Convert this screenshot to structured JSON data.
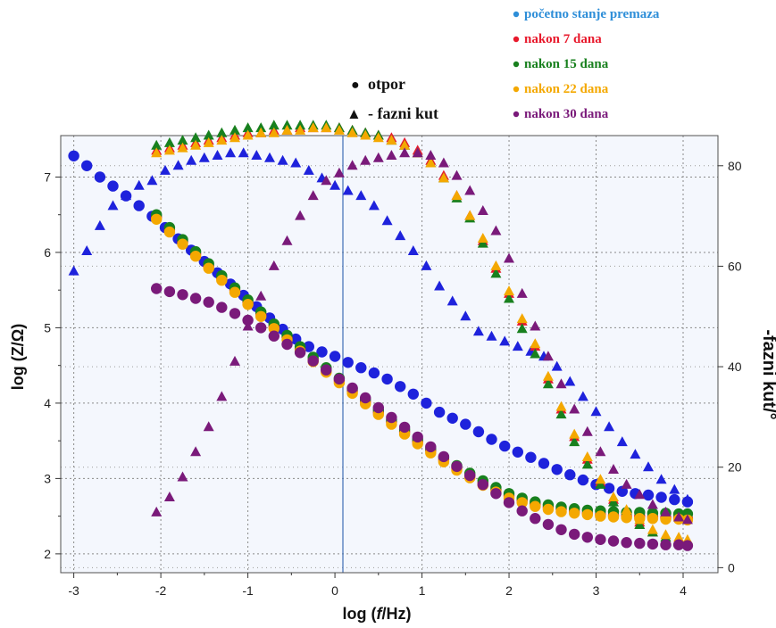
{
  "chart_data": {
    "type": "scatter",
    "xlabel_parts": [
      "log (",
      "f",
      "/Hz)"
    ],
    "ylabel": "log (Z/Ω)",
    "y2label": "-fazni kut/°",
    "xlim": [
      -3.15,
      4.4
    ],
    "ylim": [
      1.75,
      7.55
    ],
    "y2lim": [
      -1,
      86
    ],
    "xticks": [
      "-3",
      "-2",
      "-1",
      "0",
      "1",
      "2",
      "3",
      "4"
    ],
    "yticks": [
      "2",
      "3",
      "4",
      "5",
      "6",
      "7"
    ],
    "y2ticks": [
      "0",
      "20",
      "40",
      "60",
      "80"
    ],
    "marker_legend": [
      {
        "glyph": "●",
        "label": "otpor"
      },
      {
        "glyph": "▲",
        "label": "- fazni kut"
      }
    ],
    "series": [
      {
        "name": "početno stanje premaza",
        "color": "#1e22dc",
        "legend_color": "#2e8ed8",
        "imp_x": [
          -3.0,
          -2.85,
          -2.7,
          -2.55,
          -2.4,
          -2.25,
          -2.1,
          -1.95,
          -1.8,
          -1.65,
          -1.5,
          -1.35,
          -1.2,
          -1.05,
          -0.9,
          -0.75,
          -0.6,
          -0.45,
          -0.3,
          -0.15,
          0.0,
          0.15,
          0.3,
          0.45,
          0.6,
          0.75,
          0.9,
          1.05,
          1.2,
          1.35,
          1.5,
          1.65,
          1.8,
          1.95,
          2.1,
          2.25,
          2.4,
          2.55,
          2.7,
          2.85,
          3.0,
          3.15,
          3.3,
          3.45,
          3.6,
          3.75,
          3.9,
          4.05
        ],
        "imp_y": [
          7.28,
          7.15,
          7.0,
          6.88,
          6.75,
          6.62,
          6.48,
          6.33,
          6.18,
          6.03,
          5.88,
          5.73,
          5.58,
          5.43,
          5.28,
          5.13,
          4.98,
          4.85,
          4.75,
          4.68,
          4.62,
          4.54,
          4.47,
          4.4,
          4.32,
          4.22,
          4.12,
          4.0,
          3.88,
          3.8,
          3.72,
          3.62,
          3.52,
          3.43,
          3.35,
          3.28,
          3.2,
          3.12,
          3.05,
          2.98,
          2.92,
          2.87,
          2.83,
          2.8,
          2.78,
          2.75,
          2.72,
          2.69
        ],
        "phase_x": [
          -3.0,
          -2.85,
          -2.7,
          -2.55,
          -2.4,
          -2.25,
          -2.1,
          -1.95,
          -1.8,
          -1.65,
          -1.5,
          -1.35,
          -1.2,
          -1.05,
          -0.9,
          -0.75,
          -0.6,
          -0.45,
          -0.3,
          -0.15,
          0.0,
          0.15,
          0.3,
          0.45,
          0.6,
          0.75,
          0.9,
          1.05,
          1.2,
          1.35,
          1.5,
          1.65,
          1.8,
          1.95,
          2.1,
          2.25,
          2.4,
          2.55,
          2.7,
          2.85,
          3.0,
          3.15,
          3.3,
          3.45,
          3.6,
          3.75,
          3.9,
          4.05
        ],
        "phase_y": [
          59,
          63,
          68,
          72,
          74,
          76,
          77,
          79,
          80,
          81,
          81.5,
          82,
          82.5,
          82.5,
          82,
          81.5,
          81,
          80.5,
          79,
          77.5,
          76,
          75,
          74,
          72,
          69,
          66,
          63,
          60,
          56,
          53,
          50,
          47,
          46,
          45,
          44,
          43,
          42,
          40,
          37,
          34,
          31,
          28,
          25,
          22.5,
          20,
          17.5,
          15.5,
          13.5
        ]
      },
      {
        "name": "nakon 7 dana",
        "color": "#e8192c",
        "legend_color": "#e8192c",
        "imp_x": [
          -2.05,
          -1.9,
          -1.75,
          -1.6,
          -1.45,
          -1.3,
          -1.15,
          -1.0,
          -0.85,
          -0.7,
          -0.55,
          -0.4,
          -0.25,
          -0.1,
          0.05,
          0.2,
          0.35,
          0.5,
          0.65,
          0.8,
          0.95,
          1.1,
          1.25,
          1.4,
          1.55,
          1.7,
          1.85,
          2.0,
          2.15,
          2.3,
          2.45,
          2.6,
          2.75,
          2.9,
          3.05,
          3.2,
          3.35,
          3.5,
          3.65,
          3.8,
          3.95,
          4.05
        ],
        "imp_y": [
          6.47,
          6.3,
          6.14,
          5.98,
          5.82,
          5.66,
          5.5,
          5.34,
          5.18,
          5.02,
          4.87,
          4.72,
          4.58,
          4.44,
          4.3,
          4.16,
          4.02,
          3.88,
          3.75,
          3.62,
          3.49,
          3.37,
          3.25,
          3.14,
          3.04,
          2.94,
          2.85,
          2.77,
          2.71,
          2.66,
          2.62,
          2.59,
          2.56,
          2.54,
          2.52,
          2.51,
          2.5,
          2.5,
          2.49,
          2.48,
          2.48,
          2.47
        ],
        "phase_x": [
          -2.05,
          -1.9,
          -1.75,
          -1.6,
          -1.45,
          -1.3,
          -1.15,
          -1.0,
          -0.85,
          -0.7,
          -0.55,
          -0.4,
          -0.25,
          -0.1,
          0.05,
          0.2,
          0.35,
          0.5,
          0.65,
          0.8,
          0.95,
          1.1,
          1.25,
          1.4,
          1.55,
          1.7,
          1.85,
          2.0,
          2.15,
          2.3,
          2.45,
          2.6,
          2.75,
          2.9,
          3.05,
          3.2,
          3.35,
          3.5,
          3.65,
          3.8,
          3.95,
          4.05
        ],
        "phase_y": [
          83,
          83.5,
          84,
          84.5,
          85,
          85.5,
          86,
          86.5,
          86.5,
          87,
          87,
          87.5,
          87.5,
          87.5,
          87.5,
          87,
          86.5,
          86,
          85.5,
          84.5,
          83,
          81,
          78,
          74,
          70,
          65,
          59.5,
          54.5,
          49,
          44,
          37.5,
          31.5,
          26,
          21.5,
          17,
          13.5,
          11,
          9,
          7,
          6,
          5.5,
          5
        ]
      },
      {
        "name": "nakon 15 dana",
        "color": "#18801e",
        "legend_color": "#18801e",
        "imp_x": [
          -2.05,
          -1.9,
          -1.75,
          -1.6,
          -1.45,
          -1.3,
          -1.15,
          -1.0,
          -0.85,
          -0.7,
          -0.55,
          -0.4,
          -0.25,
          -0.1,
          0.05,
          0.2,
          0.35,
          0.5,
          0.65,
          0.8,
          0.95,
          1.1,
          1.25,
          1.4,
          1.55,
          1.7,
          1.85,
          2.0,
          2.15,
          2.3,
          2.45,
          2.6,
          2.75,
          2.9,
          3.05,
          3.2,
          3.35,
          3.5,
          3.65,
          3.8,
          3.95,
          4.05
        ],
        "imp_y": [
          6.5,
          6.33,
          6.17,
          6.01,
          5.85,
          5.69,
          5.53,
          5.37,
          5.21,
          5.05,
          4.9,
          4.75,
          4.61,
          4.47,
          4.33,
          4.19,
          4.05,
          3.91,
          3.78,
          3.65,
          3.52,
          3.4,
          3.28,
          3.17,
          3.07,
          2.97,
          2.88,
          2.8,
          2.74,
          2.69,
          2.65,
          2.62,
          2.6,
          2.58,
          2.57,
          2.56,
          2.55,
          2.55,
          2.54,
          2.54,
          2.53,
          2.53
        ],
        "phase_y": [
          84,
          84.5,
          85,
          85.5,
          86,
          86.5,
          87,
          87.5,
          87.5,
          88,
          88,
          88,
          88,
          88,
          87.5,
          87,
          86.5,
          86,
          85,
          84,
          82.5,
          80.5,
          77.5,
          73.5,
          69.5,
          64.5,
          58.5,
          53.5,
          47.5,
          42.5,
          36.5,
          30.5,
          25,
          20.5,
          16.5,
          13,
          10.5,
          8.5,
          7,
          6,
          5.5,
          5
        ]
      },
      {
        "name": "nakon 22 dana",
        "color": "#f4a800",
        "legend_color": "#f4a800",
        "imp_x": [
          -2.05,
          -1.9,
          -1.75,
          -1.6,
          -1.45,
          -1.3,
          -1.15,
          -1.0,
          -0.85,
          -0.7,
          -0.55,
          -0.4,
          -0.25,
          -0.1,
          0.05,
          0.2,
          0.35,
          0.5,
          0.65,
          0.8,
          0.95,
          1.1,
          1.25,
          1.4,
          1.55,
          1.7,
          1.85,
          2.0,
          2.15,
          2.3,
          2.45,
          2.6,
          2.75,
          2.9,
          3.05,
          3.2,
          3.35,
          3.5,
          3.65,
          3.8,
          3.95,
          4.05
        ],
        "imp_y": [
          6.44,
          6.27,
          6.11,
          5.95,
          5.79,
          5.63,
          5.47,
          5.31,
          5.15,
          4.99,
          4.84,
          4.69,
          4.55,
          4.41,
          4.27,
          4.13,
          3.99,
          3.85,
          3.72,
          3.59,
          3.46,
          3.34,
          3.22,
          3.11,
          3.01,
          2.91,
          2.82,
          2.74,
          2.68,
          2.63,
          2.59,
          2.56,
          2.54,
          2.52,
          2.5,
          2.49,
          2.48,
          2.47,
          2.47,
          2.46,
          2.46,
          2.45
        ],
        "phase_y": [
          82.5,
          83,
          83.5,
          84,
          84.5,
          85,
          85.5,
          86,
          86.5,
          86.5,
          87,
          87,
          87.5,
          87.5,
          87,
          86.5,
          86,
          85.5,
          85,
          84,
          82.5,
          80.5,
          77.5,
          74,
          70,
          65.5,
          60,
          55,
          49.5,
          44.5,
          38,
          32,
          26.5,
          22,
          17.5,
          14,
          11.5,
          9.5,
          7.5,
          6.5,
          6,
          5.5
        ]
      },
      {
        "name": "nakon 30 dana",
        "color": "#7a1a7a",
        "legend_color": "#7a1a7a",
        "imp_x": [
          -2.05,
          -1.9,
          -1.75,
          -1.6,
          -1.45,
          -1.3,
          -1.15,
          -1.0,
          -0.85,
          -0.7,
          -0.55,
          -0.4,
          -0.25,
          -0.1,
          0.05,
          0.2,
          0.35,
          0.5,
          0.65,
          0.8,
          0.95,
          1.1,
          1.25,
          1.4,
          1.55,
          1.7,
          1.85,
          2.0,
          2.15,
          2.3,
          2.45,
          2.6,
          2.75,
          2.9,
          3.05,
          3.2,
          3.35,
          3.5,
          3.65,
          3.8,
          3.95,
          4.05
        ],
        "imp_y": [
          5.52,
          5.48,
          5.44,
          5.39,
          5.34,
          5.27,
          5.19,
          5.1,
          5.0,
          4.89,
          4.78,
          4.67,
          4.56,
          4.44,
          4.32,
          4.2,
          4.07,
          3.94,
          3.81,
          3.68,
          3.55,
          3.42,
          3.29,
          3.16,
          3.04,
          2.92,
          2.8,
          2.68,
          2.57,
          2.47,
          2.39,
          2.32,
          2.26,
          2.22,
          2.19,
          2.17,
          2.15,
          2.14,
          2.13,
          2.12,
          2.12,
          2.11
        ],
        "phase_y": [
          11,
          14,
          18,
          23,
          28,
          34,
          41,
          48,
          54,
          60,
          65,
          70,
          74,
          77,
          78.5,
          80,
          81,
          81.5,
          82,
          82.5,
          82.5,
          82,
          80.5,
          78,
          75,
          71,
          67,
          61.5,
          54.5,
          48,
          42,
          36.5,
          31.5,
          27,
          23,
          19.5,
          16.5,
          14.5,
          12.5,
          11,
          10,
          9.5
        ]
      }
    ]
  }
}
